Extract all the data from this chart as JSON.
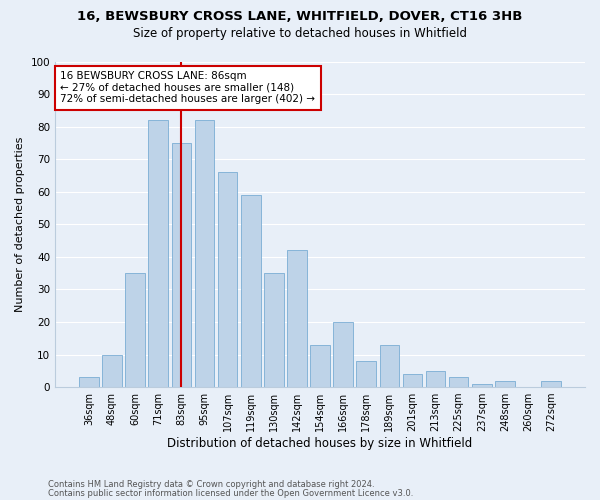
{
  "title1": "16, BEWSBURY CROSS LANE, WHITFIELD, DOVER, CT16 3HB",
  "title2": "Size of property relative to detached houses in Whitfield",
  "xlabel": "Distribution of detached houses by size in Whitfield",
  "ylabel": "Number of detached properties",
  "categories": [
    "36sqm",
    "48sqm",
    "60sqm",
    "71sqm",
    "83sqm",
    "95sqm",
    "107sqm",
    "119sqm",
    "130sqm",
    "142sqm",
    "154sqm",
    "166sqm",
    "178sqm",
    "189sqm",
    "201sqm",
    "213sqm",
    "225sqm",
    "237sqm",
    "248sqm",
    "260sqm",
    "272sqm"
  ],
  "values": [
    3,
    10,
    35,
    82,
    75,
    82,
    66,
    59,
    35,
    42,
    13,
    20,
    8,
    13,
    4,
    5,
    3,
    1,
    2,
    0,
    2
  ],
  "bar_color": "#bed3e8",
  "bar_edge_color": "#7aadd4",
  "marker_bin_index": 4,
  "marker_color": "#cc0000",
  "annotation_line1": "16 BEWSBURY CROSS LANE: 86sqm",
  "annotation_line2": "← 27% of detached houses are smaller (148)",
  "annotation_line3": "72% of semi-detached houses are larger (402) →",
  "annotation_box_color": "#ffffff",
  "annotation_box_edge": "#cc0000",
  "bg_color": "#e8eff8",
  "grid_color": "#ffffff",
  "footer1": "Contains HM Land Registry data © Crown copyright and database right 2024.",
  "footer2": "Contains public sector information licensed under the Open Government Licence v3.0.",
  "ylim": [
    0,
    100
  ],
  "title_fontsize": 9.5,
  "subtitle_fontsize": 8.5,
  "tick_fontsize": 7,
  "ylabel_fontsize": 8,
  "xlabel_fontsize": 8.5,
  "footer_fontsize": 6,
  "annotation_fontsize": 7.5
}
